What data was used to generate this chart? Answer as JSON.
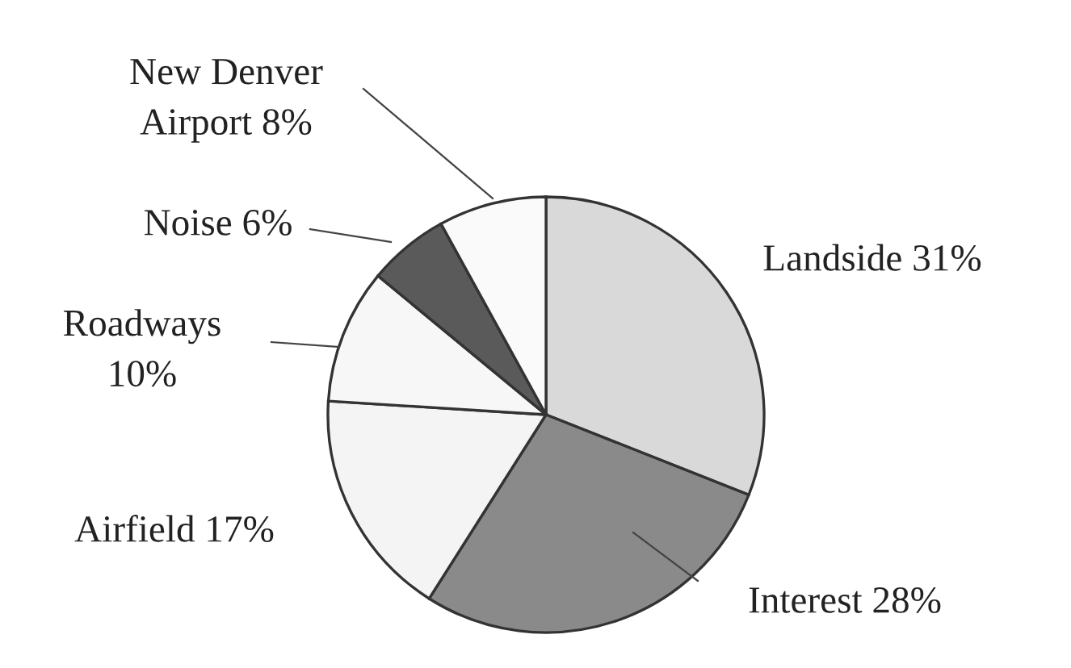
{
  "chart_data": {
    "type": "pie",
    "categories": [
      "Landside",
      "Interest",
      "Airfield",
      "Roadways",
      "Noise",
      "New Denver Airport"
    ],
    "values": [
      31,
      28,
      17,
      10,
      6,
      8
    ],
    "value_labels": [
      "31%",
      "28%",
      "17%",
      "10%",
      "6%",
      "8%"
    ],
    "colors": [
      "#d9d9d9",
      "#8a8a8a",
      "#f4f4f4",
      "#f7f7f7",
      "#5a5a5a",
      "#fafafa"
    ]
  }
}
